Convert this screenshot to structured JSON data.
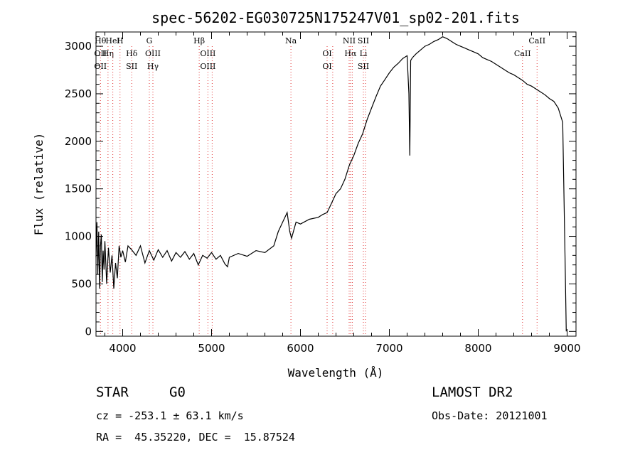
{
  "chart_data": {
    "type": "line",
    "title": "spec-56202-EG030725N175247V01_sp02-201.fits",
    "xlabel": "Wavelength (Å)",
    "ylabel": "Flux (relative)",
    "xlim": [
      3700,
      9100
    ],
    "ylim": [
      -50,
      3150
    ],
    "xticks": [
      4000,
      5000,
      6000,
      7000,
      8000,
      9000
    ],
    "yticks": [
      0,
      500,
      1000,
      1500,
      2000,
      2500,
      3000
    ],
    "grid": false,
    "series": [
      {
        "color": "#000000",
        "points": [
          [
            3700,
            780
          ],
          [
            3710,
            1150
          ],
          [
            3720,
            600
          ],
          [
            3730,
            1050
          ],
          [
            3740,
            450
          ],
          [
            3750,
            900
          ],
          [
            3760,
            1020
          ],
          [
            3770,
            520
          ],
          [
            3780,
            850
          ],
          [
            3790,
            650
          ],
          [
            3800,
            950
          ],
          [
            3820,
            500
          ],
          [
            3840,
            880
          ],
          [
            3860,
            620
          ],
          [
            3880,
            800
          ],
          [
            3900,
            450
          ],
          [
            3920,
            720
          ],
          [
            3940,
            560
          ],
          [
            3960,
            900
          ],
          [
            3980,
            780
          ],
          [
            4000,
            850
          ],
          [
            4030,
            730
          ],
          [
            4060,
            900
          ],
          [
            4100,
            860
          ],
          [
            4150,
            800
          ],
          [
            4200,
            900
          ],
          [
            4250,
            720
          ],
          [
            4300,
            850
          ],
          [
            4350,
            750
          ],
          [
            4400,
            860
          ],
          [
            4450,
            780
          ],
          [
            4500,
            850
          ],
          [
            4550,
            740
          ],
          [
            4600,
            830
          ],
          [
            4650,
            780
          ],
          [
            4700,
            840
          ],
          [
            4750,
            760
          ],
          [
            4800,
            820
          ],
          [
            4850,
            700
          ],
          [
            4900,
            800
          ],
          [
            4950,
            770
          ],
          [
            5000,
            830
          ],
          [
            5050,
            760
          ],
          [
            5100,
            800
          ],
          [
            5150,
            710
          ],
          [
            5180,
            680
          ],
          [
            5200,
            780
          ],
          [
            5300,
            820
          ],
          [
            5400,
            790
          ],
          [
            5500,
            850
          ],
          [
            5600,
            830
          ],
          [
            5700,
            900
          ],
          [
            5750,
            1050
          ],
          [
            5800,
            1150
          ],
          [
            5850,
            1250
          ],
          [
            5880,
            1050
          ],
          [
            5900,
            980
          ],
          [
            5950,
            1150
          ],
          [
            6000,
            1130
          ],
          [
            6100,
            1180
          ],
          [
            6200,
            1200
          ],
          [
            6250,
            1230
          ],
          [
            6300,
            1250
          ],
          [
            6350,
            1350
          ],
          [
            6400,
            1450
          ],
          [
            6450,
            1500
          ],
          [
            6500,
            1600
          ],
          [
            6550,
            1750
          ],
          [
            6600,
            1850
          ],
          [
            6650,
            1980
          ],
          [
            6700,
            2080
          ],
          [
            6750,
            2230
          ],
          [
            6800,
            2350
          ],
          [
            6850,
            2470
          ],
          [
            6900,
            2580
          ],
          [
            6950,
            2650
          ],
          [
            7000,
            2720
          ],
          [
            7050,
            2780
          ],
          [
            7100,
            2820
          ],
          [
            7150,
            2870
          ],
          [
            7200,
            2900
          ],
          [
            7220,
            2500
          ],
          [
            7230,
            1850
          ],
          [
            7240,
            2850
          ],
          [
            7260,
            2880
          ],
          [
            7300,
            2920
          ],
          [
            7350,
            2960
          ],
          [
            7400,
            3000
          ],
          [
            7450,
            3020
          ],
          [
            7500,
            3050
          ],
          [
            7550,
            3070
          ],
          [
            7600,
            3100
          ],
          [
            7650,
            3080
          ],
          [
            7700,
            3050
          ],
          [
            7750,
            3020
          ],
          [
            7800,
            3000
          ],
          [
            7850,
            2980
          ],
          [
            7900,
            2960
          ],
          [
            7950,
            2940
          ],
          [
            8000,
            2920
          ],
          [
            8050,
            2880
          ],
          [
            8100,
            2860
          ],
          [
            8150,
            2840
          ],
          [
            8200,
            2810
          ],
          [
            8250,
            2780
          ],
          [
            8300,
            2750
          ],
          [
            8350,
            2720
          ],
          [
            8400,
            2700
          ],
          [
            8450,
            2670
          ],
          [
            8500,
            2640
          ],
          [
            8550,
            2600
          ],
          [
            8600,
            2580
          ],
          [
            8650,
            2550
          ],
          [
            8700,
            2520
          ],
          [
            8750,
            2490
          ],
          [
            8800,
            2450
          ],
          [
            8850,
            2420
          ],
          [
            8900,
            2350
          ],
          [
            8950,
            2200
          ],
          [
            8980,
            600
          ],
          [
            8990,
            0
          ]
        ]
      }
    ],
    "lines": [
      {
        "x": 3750,
        "top": [
          "Hθ"
        ],
        "bottom": [
          "OII",
          "OII"
        ]
      },
      {
        "x": 3835,
        "top": [],
        "bottom": [
          "Hη"
        ]
      },
      {
        "x": 3889,
        "top": [
          "HeI"
        ],
        "bottom": []
      },
      {
        "x": 3970,
        "top": [
          "H"
        ],
        "bottom": []
      },
      {
        "x": 4102,
        "top": [],
        "bottom": [
          "Hδ",
          "SII"
        ]
      },
      {
        "x": 4300,
        "top": [
          "G"
        ],
        "bottom": []
      },
      {
        "x": 4340,
        "top": [],
        "bottom": [
          "OIII",
          "Hγ"
        ]
      },
      {
        "x": 4861,
        "top": [
          "Hβ"
        ],
        "bottom": []
      },
      {
        "x": 4959,
        "top": [],
        "bottom": [
          "OIII",
          "OIII"
        ]
      },
      {
        "x": 5007,
        "top": [],
        "bottom": []
      },
      {
        "x": 5893,
        "top": [
          "Na"
        ],
        "bottom": []
      },
      {
        "x": 6300,
        "top": [],
        "bottom": [
          "OI",
          "OI"
        ]
      },
      {
        "x": 6363,
        "top": [],
        "bottom": []
      },
      {
        "x": 6548,
        "top": [
          "NII"
        ],
        "bottom": []
      },
      {
        "x": 6563,
        "top": [],
        "bottom": [
          "Hα"
        ]
      },
      {
        "x": 6583,
        "top": [],
        "bottom": []
      },
      {
        "x": 6708,
        "top": [
          "SII"
        ],
        "bottom": [
          "Li",
          "SII"
        ]
      },
      {
        "x": 6731,
        "top": [],
        "bottom": []
      },
      {
        "x": 8498,
        "top": [],
        "bottom": [
          "CaII"
        ]
      },
      {
        "x": 8662,
        "top": [
          "CaII"
        ],
        "bottom": []
      }
    ]
  },
  "footer": {
    "class_label": "STAR",
    "subclass_label": "G0",
    "survey": "LAMOST DR2",
    "cz": "cz = -253.1 ± 63.1 km/s",
    "obs_date": "Obs-Date: 20121001",
    "coords": "RA =  45.35220, DEC =  15.87524"
  }
}
